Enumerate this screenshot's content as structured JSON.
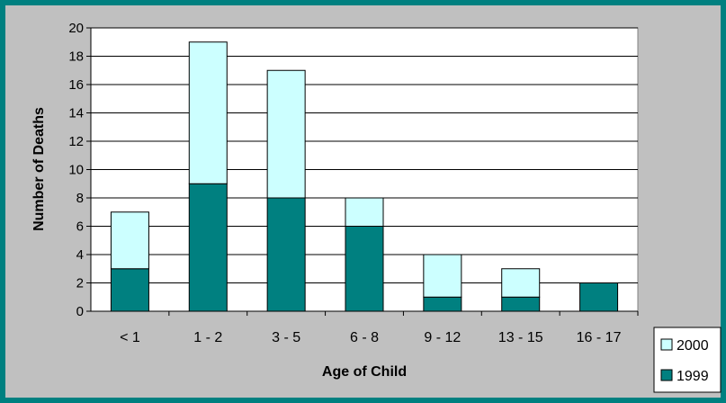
{
  "chart_data": {
    "type": "bar",
    "stacked": true,
    "title": "",
    "xlabel": "Age of Child",
    "ylabel": "Number of Deaths",
    "categories": [
      "< 1",
      "1 - 2",
      "3 - 5",
      "6 - 8",
      "9 - 12",
      "13 - 15",
      "16 - 17"
    ],
    "series": [
      {
        "name": "1999",
        "values": [
          3,
          9,
          8,
          6,
          1,
          1,
          2
        ],
        "color": "#008080"
      },
      {
        "name": "2000",
        "values": [
          4,
          10,
          9,
          2,
          3,
          2,
          0
        ],
        "color": "#ccffff"
      }
    ],
    "ylim": [
      0,
      20
    ],
    "yticks": [
      "0",
      "2",
      "4",
      "6",
      "8",
      "10",
      "12",
      "14",
      "16",
      "18",
      "20"
    ],
    "grid": true,
    "legend_position": "bottom-right",
    "legend_order": [
      "2000",
      "1999"
    ],
    "colors": {
      "frame": "#008080",
      "background": "#c0c0c0",
      "plot_area": "#ffffff"
    }
  }
}
